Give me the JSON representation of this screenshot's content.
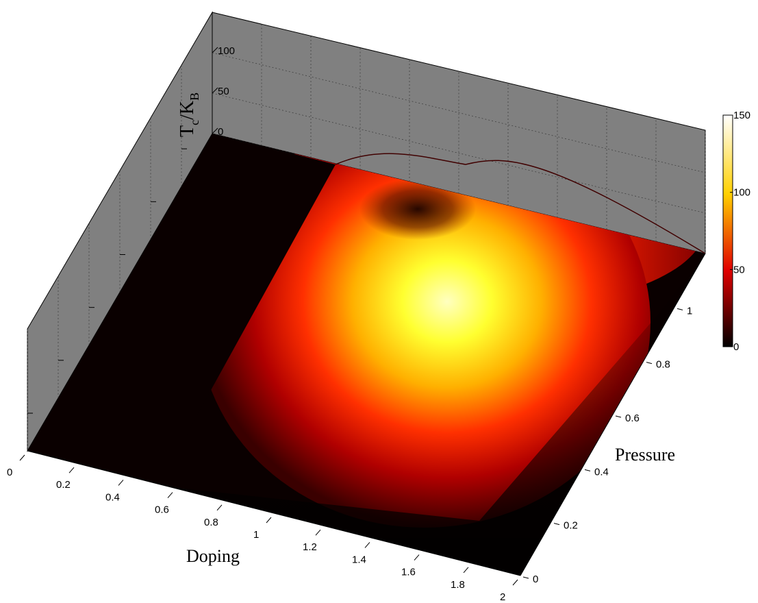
{
  "chart_data": {
    "type": "surface3d",
    "colormap": "hot",
    "xlabel": "Doping",
    "ylabel": "Pressure",
    "zlabel": "T",
    "zlabel_sub1": "c",
    "zlabel_mid": "/K",
    "zlabel_sub2": "B",
    "xlim": [
      0,
      2
    ],
    "ylim": [
      0,
      1.2
    ],
    "zlim": [
      0,
      150
    ],
    "x_ticks": [
      "0",
      "0.2",
      "0.4",
      "0.6",
      "0.8",
      "1",
      "1.2",
      "1.4",
      "1.6",
      "1.8",
      "2"
    ],
    "y_ticks": [
      "0",
      "0.2",
      "0.4",
      "0.6",
      "0.8",
      "1"
    ],
    "z_ticks": [
      "0",
      "50",
      "100"
    ],
    "colorbar": {
      "min": 0,
      "max": 150,
      "ticks": [
        "0",
        "50",
        "100",
        "150"
      ]
    },
    "grid": true,
    "features": {
      "plateau_zero_doping_below": 0.9,
      "peak_value_approx": 140,
      "peak_doping_approx": 1.3,
      "peak_pressure_approx": 0.75,
      "dip_doping_approx": 1.25,
      "dip_pressure_approx": 1.05
    }
  }
}
